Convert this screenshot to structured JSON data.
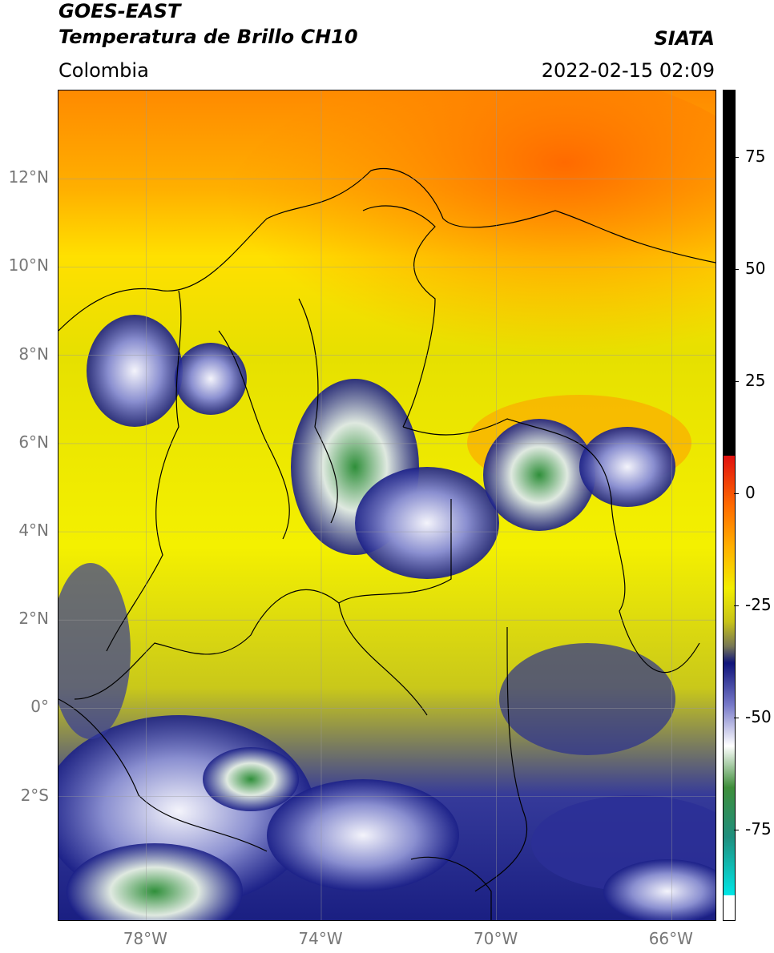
{
  "header": {
    "satellite": "GOES-EAST",
    "product": "Temperatura de Brillo CH10",
    "region": "Colombia",
    "brand": "SIATA",
    "timestamp": "2022-02-15 02:09"
  },
  "map": {
    "lat_labels": [
      "12°N",
      "10°N",
      "8°N",
      "6°N",
      "4°N",
      "2°N",
      "0°",
      "2°S"
    ],
    "lon_labels": [
      "78°W",
      "74°W",
      "70°W",
      "66°W"
    ],
    "lat_values": [
      12,
      10,
      8,
      6,
      4,
      2,
      0,
      -2
    ],
    "lon_values": [
      -78,
      -74,
      -70,
      -66
    ],
    "lat_range": [
      -4.8,
      14
    ],
    "lon_range": [
      -80,
      -65
    ]
  },
  "colorbar": {
    "ticks": [
      "75",
      "50",
      "25",
      "0",
      "-25",
      "-50",
      "-75"
    ],
    "tick_values": [
      75,
      50,
      25,
      0,
      -25,
      -50,
      -75
    ],
    "range": [
      -95,
      90
    ]
  }
}
